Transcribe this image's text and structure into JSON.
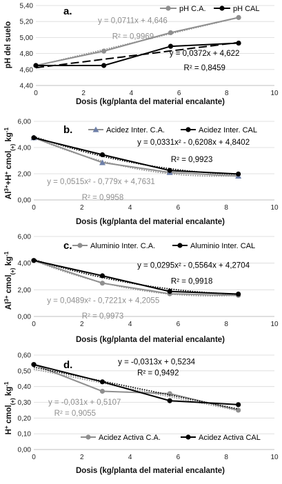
{
  "chart_data": [
    {
      "type": "line",
      "panel": "a.",
      "xlabel": "Dosis (kg/planta del material encalante)",
      "ylabel": "pH del suelo",
      "xlim": [
        0,
        10
      ],
      "ylim": [
        4.4,
        5.4
      ],
      "x_ticks": [
        0,
        2,
        4,
        6,
        8,
        10
      ],
      "y_ticks": [
        "4,40",
        "4,60",
        "4,80",
        "5,00",
        "5,20",
        "5,40"
      ],
      "legend_position": "top-right",
      "x": [
        0,
        2.85,
        5.65,
        8.5
      ],
      "series": [
        {
          "name": "pH C.A.",
          "values": [
            4.65,
            4.83,
            5.06,
            5.25
          ],
          "color": "#8f8f8f",
          "marker": "circle",
          "trend": {
            "type": "linear",
            "coef": [
              0.0711,
              4.646
            ],
            "style": "dotted"
          }
        },
        {
          "name": "pH CAL",
          "values": [
            4.65,
            4.65,
            4.89,
            4.93
          ],
          "color": "#000000",
          "marker": "circle",
          "trend": {
            "type": "linear",
            "coef": [
              0.0372,
              4.622
            ],
            "style": "dashed"
          }
        }
      ],
      "annotations": [
        {
          "text": "y = 0,0711x + 4,646",
          "color": "#8f8f8f",
          "x": 2.6,
          "y": 5.18
        },
        {
          "text": "R² = 0,9969",
          "color": "#8f8f8f",
          "x": 3.2,
          "y": 4.98
        },
        {
          "text": "y = 0,0372x + 4,622",
          "color": "#000000",
          "x": 5.6,
          "y": 4.77
        },
        {
          "text": "R² = 0,8459",
          "color": "#000000",
          "x": 6.2,
          "y": 4.59
        }
      ]
    },
    {
      "type": "line",
      "panel": "b.",
      "xlabel": "Dosis (kg/planta del material encalante)",
      "ylabel": "Al³⁺+H⁺ cmol(+) kg⁻¹",
      "xlim": [
        0,
        10
      ],
      "ylim": [
        0,
        6
      ],
      "x_ticks": [
        0,
        2,
        4,
        6,
        8,
        10
      ],
      "y_ticks": [
        "0,00",
        "2,00",
        "4,00",
        "6,00"
      ],
      "legend_position": "top",
      "x": [
        0,
        2.85,
        5.65,
        8.5
      ],
      "series": [
        {
          "name": "Acidez Inter. C.A.",
          "values": [
            4.75,
            2.85,
            2.1,
            1.82
          ],
          "color": "#8f8f8f",
          "marker": "triangle",
          "marker_color": "#6d7fa8",
          "trend": {
            "type": "poly2",
            "coef": [
              0.0515,
              -0.779,
              4.7631
            ],
            "style": "dotted"
          }
        },
        {
          "name": "Acidez Inter. CAL",
          "values": [
            4.75,
            3.45,
            2.25,
            1.98
          ],
          "color": "#000000",
          "marker": "circle",
          "trend": {
            "type": "poly2",
            "coef": [
              0.0331,
              -0.6208,
              4.8402
            ],
            "style": "dotted"
          }
        }
      ],
      "annotations": [
        {
          "text": "y = 0,0331x² - 0,6208x + 4,8402",
          "color": "#000000",
          "x": 4.3,
          "y": 4.2
        },
        {
          "text": "R² = 0,9923",
          "color": "#000000",
          "x": 5.7,
          "y": 2.9
        },
        {
          "text": "y = 0,0515x² - 0,779x + 4,7631",
          "color": "#8f8f8f",
          "x": 0.55,
          "y": 1.2
        },
        {
          "text": "R² = 0,9958",
          "color": "#8f8f8f",
          "x": 2.0,
          "y": 0.0
        }
      ]
    },
    {
      "type": "line",
      "panel": "c.",
      "xlabel": "Dosis (kg/planta del material encalante)",
      "ylabel": "Al³⁺ cmol(+) kg⁻¹",
      "xlim": [
        0,
        10
      ],
      "ylim": [
        0,
        6
      ],
      "x_ticks": [
        0,
        2,
        4,
        6,
        8,
        10
      ],
      "y_ticks": [
        "0,00",
        "2,00",
        "4,00",
        "6,00"
      ],
      "legend_position": "top",
      "x": [
        0,
        2.85,
        5.65,
        8.5
      ],
      "series": [
        {
          "name": "Aluminio Inter. C.A.",
          "values": [
            4.2,
            2.5,
            1.7,
            1.58
          ],
          "color": "#8f8f8f",
          "marker": "circle",
          "trend": {
            "type": "poly2",
            "coef": [
              0.0489,
              -0.7221,
              4.2055
            ],
            "style": "dotted"
          }
        },
        {
          "name": "Aluminio Inter. CAL",
          "values": [
            4.2,
            3.05,
            1.88,
            1.68
          ],
          "color": "#000000",
          "marker": "circle",
          "trend": {
            "type": "poly2",
            "coef": [
              0.0295,
              -0.5564,
              4.2704
            ],
            "style": "dotted"
          }
        }
      ],
      "annotations": [
        {
          "text": "y = 0,0295x² - 0,5564x + 4,2704",
          "color": "#000000",
          "x": 4.3,
          "y": 3.65
        },
        {
          "text": "R² = 0,9918",
          "color": "#000000",
          "x": 5.7,
          "y": 2.45
        },
        {
          "text": "y = 0,0489x² - 0,7221x + 4,2055",
          "color": "#8f8f8f",
          "x": 0.55,
          "y": 1.0
        },
        {
          "text": "R² = 0,9973",
          "color": "#8f8f8f",
          "x": 2.0,
          "y": -0.15
        }
      ]
    },
    {
      "type": "line",
      "panel": "d.",
      "xlabel": "Dosis (kg/planta del material encalante)",
      "ylabel": "H⁺ cmol(+) kg⁻¹",
      "xlim": [
        0,
        10
      ],
      "ylim": [
        0,
        0.6
      ],
      "x_ticks": [
        0,
        2,
        4,
        6,
        8,
        10
      ],
      "y_ticks": [
        "0,00",
        "0,10",
        "0,20",
        "0,30",
        "0,40",
        "0,50",
        "0,60"
      ],
      "legend_position": "bottom",
      "x": [
        0,
        2.85,
        5.65,
        8.5
      ],
      "series": [
        {
          "name": "Acidez Activa C.A.",
          "values": [
            0.54,
            0.37,
            0.355,
            0.25
          ],
          "color": "#8f8f8f",
          "marker": "circle",
          "trend": {
            "type": "linear",
            "coef": [
              -0.031,
              0.5107
            ],
            "style": "dotted"
          }
        },
        {
          "name": "Acidez Activa CAL",
          "values": [
            0.54,
            0.43,
            0.31,
            0.285
          ],
          "color": "#000000",
          "marker": "circle",
          "trend": {
            "type": "linear",
            "coef": [
              -0.0313,
              0.5234
            ],
            "style": "dotted"
          }
        }
      ],
      "annotations": [
        {
          "text": "y = -0,0313x + 0,5234",
          "color": "#000000",
          "x": 3.5,
          "y": 0.54
        },
        {
          "text": "R² = 0,9492",
          "color": "#000000",
          "x": 4.3,
          "y": 0.47
        },
        {
          "text": "y = -0,031x + 0,5107",
          "color": "#8f8f8f",
          "x": 0.6,
          "y": 0.285
        },
        {
          "text": "R² = 0,9055",
          "color": "#8f8f8f",
          "x": 0.85,
          "y": 0.215
        }
      ]
    }
  ]
}
